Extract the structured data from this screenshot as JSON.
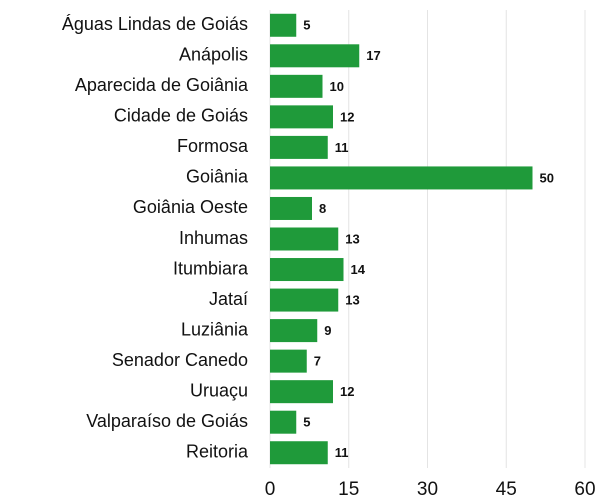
{
  "chart_data": {
    "type": "hbar",
    "categories": [
      "Águas Lindas de Goiás",
      "Anápolis",
      "Aparecida de Goiânia",
      "Cidade de Goiás",
      "Formosa",
      "Goiânia",
      "Goiânia Oeste",
      "Inhumas",
      "Itumbiara",
      "Jataí",
      "Luziânia",
      "Senador Canedo",
      "Uruaçu",
      "Valparaíso de Goiás",
      "Reitoria"
    ],
    "values": [
      5,
      17,
      10,
      12,
      11,
      50,
      8,
      13,
      14,
      13,
      9,
      7,
      12,
      5,
      11
    ],
    "color": "#1f9a3a",
    "xlim": [
      0,
      60
    ],
    "xticks": [
      0,
      15,
      30,
      45,
      60
    ],
    "grid": true
  }
}
